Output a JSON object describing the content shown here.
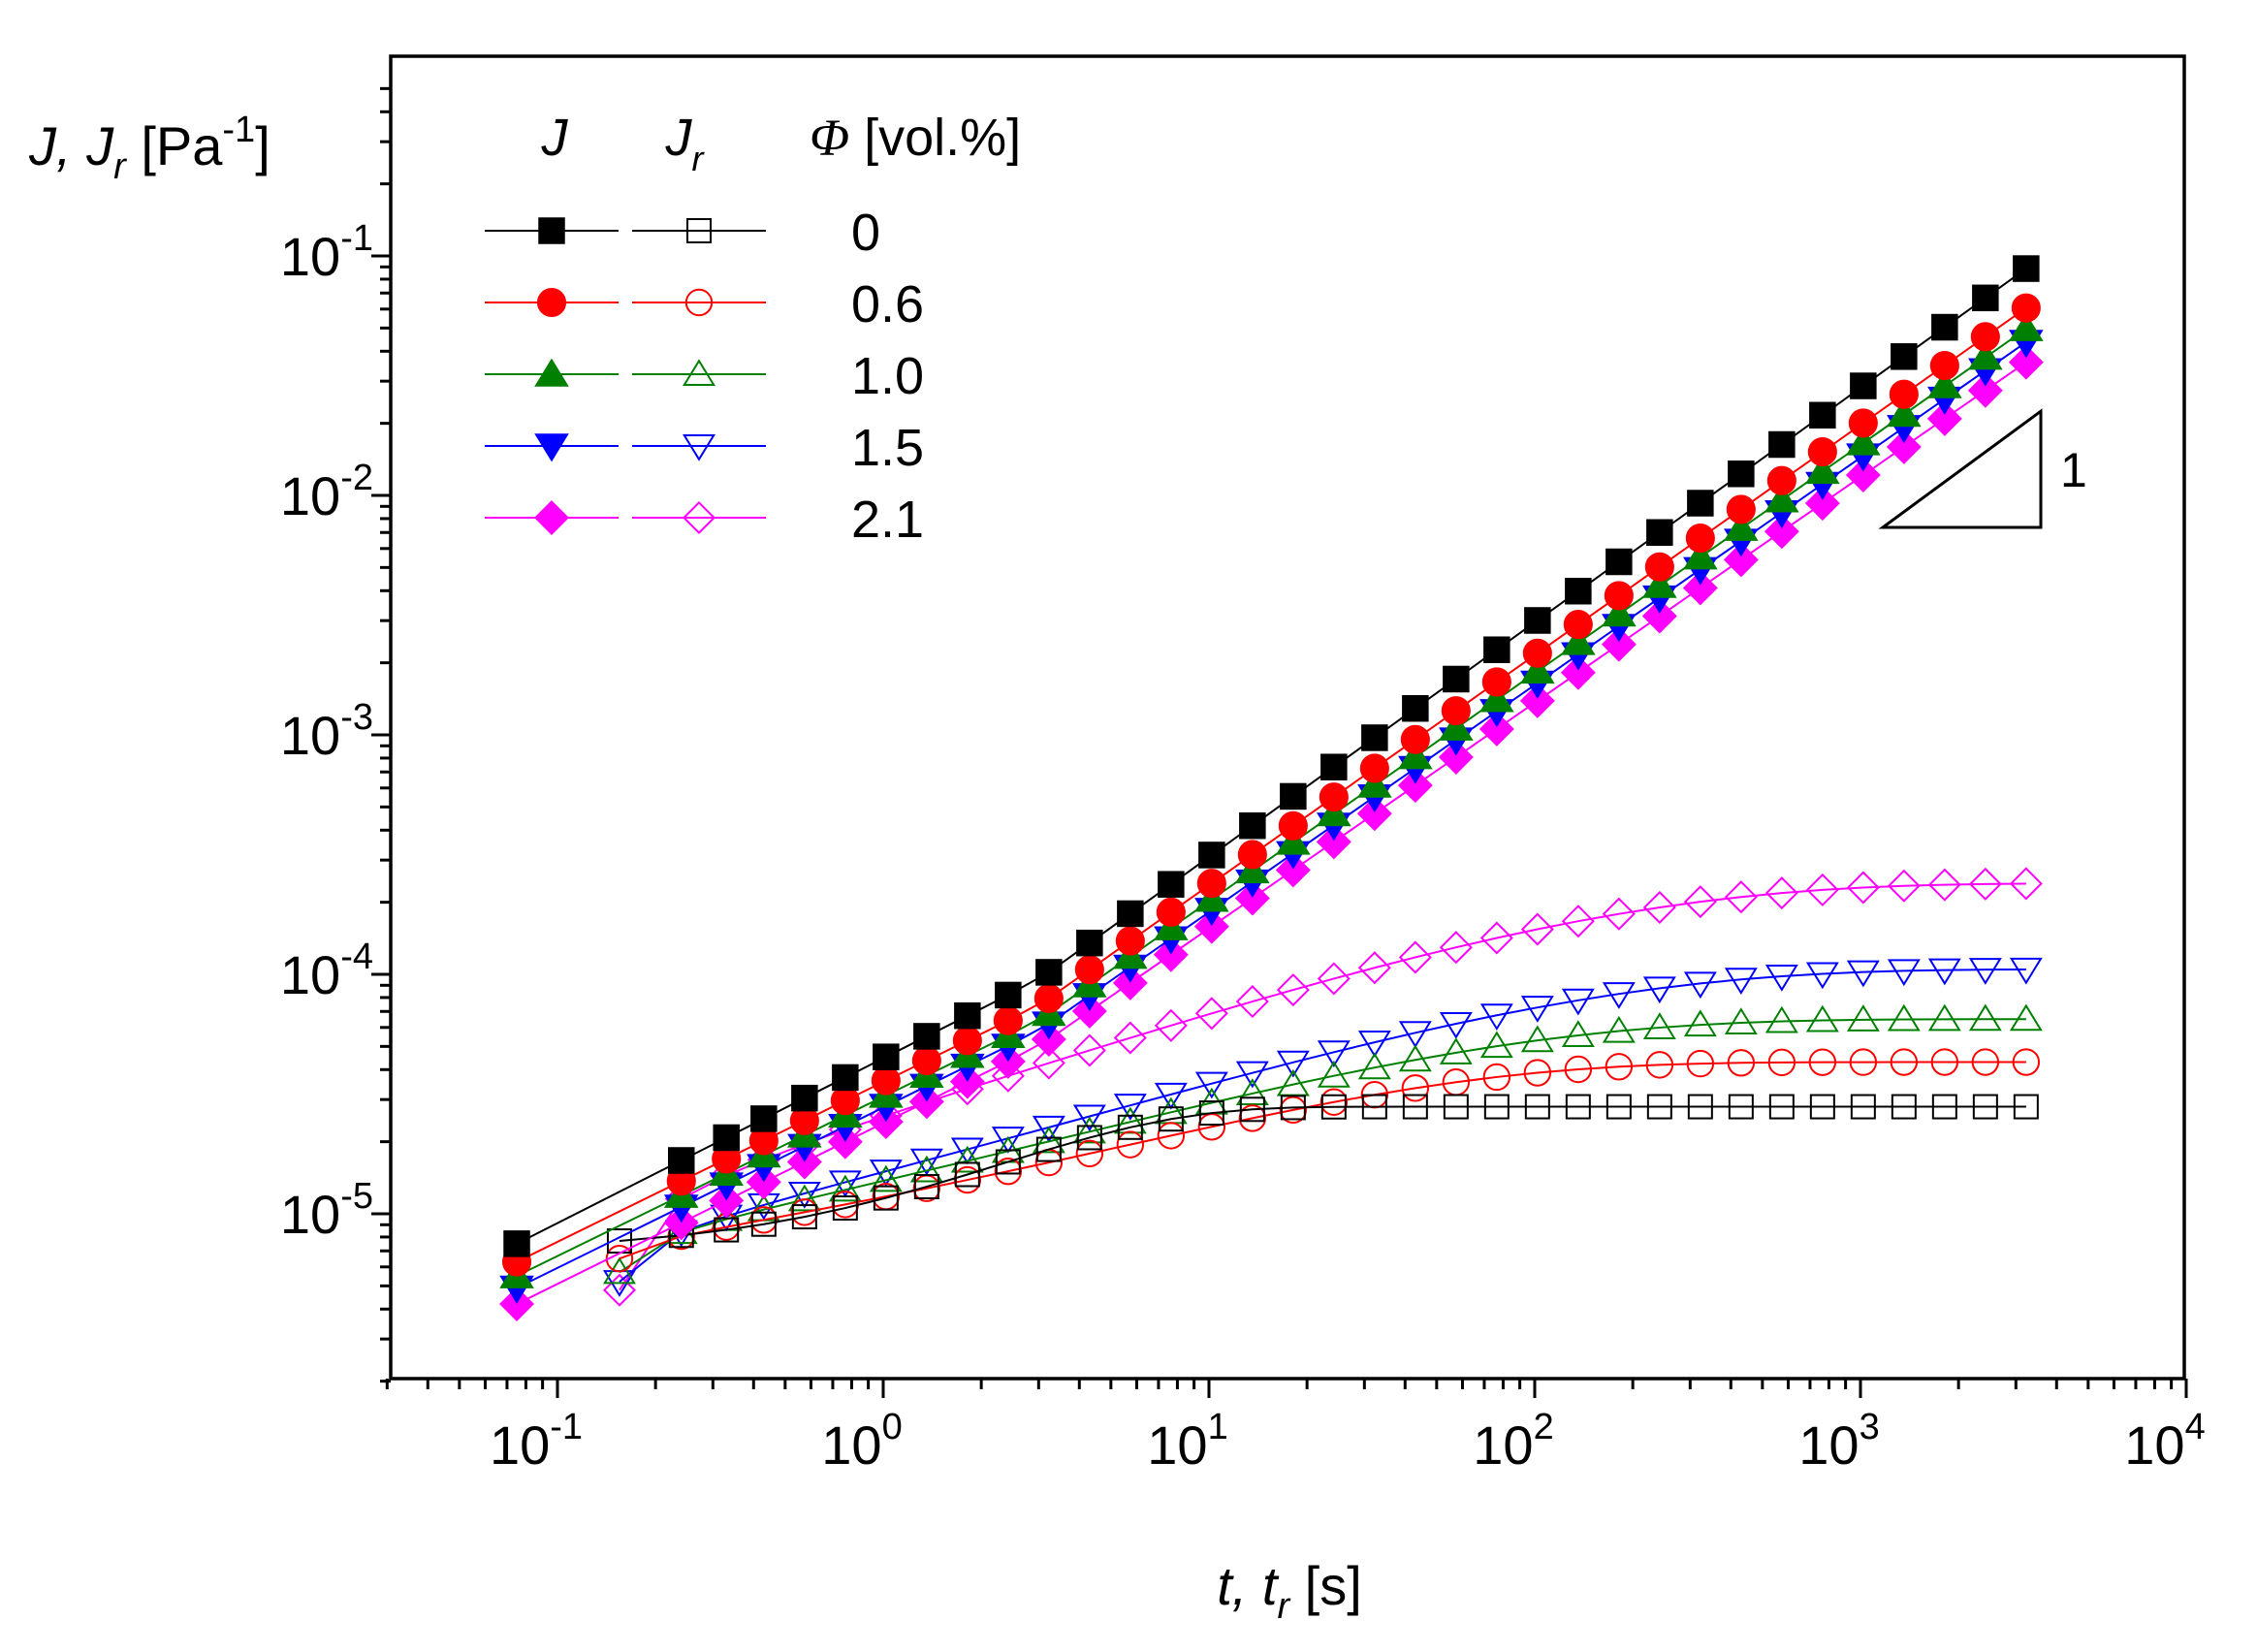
{
  "chart_data": {
    "type": "scatter",
    "xscale": "log",
    "yscale": "log",
    "xlim": [
      0.03,
      10000
    ],
    "ylim": [
      2e-06,
      0.5
    ],
    "xlabel": {
      "main": "t, t",
      "sub": "r",
      "unit": " [s]"
    },
    "ylabel": {
      "main": "J, J",
      "sub": "r",
      "unit": " [Pa",
      "sup": "-1",
      "close": "]"
    },
    "x_ticks": [
      {
        "base": "10",
        "exp": "-1",
        "value": 0.1
      },
      {
        "base": "10",
        "exp": "0",
        "value": 1
      },
      {
        "base": "10",
        "exp": "1",
        "value": 10
      },
      {
        "base": "10",
        "exp": "2",
        "value": 100
      },
      {
        "base": "10",
        "exp": "3",
        "value": 1000
      },
      {
        "base": "10",
        "exp": "4",
        "value": 10000
      }
    ],
    "y_ticks": [
      {
        "base": "10",
        "exp": "-5",
        "value": 1e-05
      },
      {
        "base": "10",
        "exp": "-4",
        "value": 0.0001
      },
      {
        "base": "10",
        "exp": "-3",
        "value": 0.001
      },
      {
        "base": "10",
        "exp": "-2",
        "value": 0.01
      },
      {
        "base": "10",
        "exp": "-1",
        "value": 0.1
      }
    ],
    "legend": {
      "headers": {
        "j": "J",
        "jr_main": "J",
        "jr_sub": "r",
        "phi": "Φ",
        "phi_unit": " [vol.%]"
      },
      "placement": "top-left"
    },
    "slope_annotation": {
      "label": "1",
      "slope": 1
    },
    "series": [
      {
        "phi": "0",
        "color": "#000000",
        "marker": "square",
        "J": {
          "t_start": 0.075,
          "t_end": 3800,
          "J_start": 7.5e-06,
          "J_end": 0.104,
          "knee_t": 3,
          "knee_J": 9.5e-05
        },
        "Jr": {
          "t_start": 0.155,
          "t_end": 3800,
          "J_start": 7.7e-06,
          "plateau": 2.8e-05,
          "tau": 4,
          "beta": 1
        }
      },
      {
        "phi": "0.6",
        "color": "#ff0000",
        "marker": "circle",
        "J": {
          "t_start": 0.075,
          "t_end": 3800,
          "J_start": 6.3e-06,
          "J_end": 0.071,
          "knee_t": 3,
          "knee_J": 7.4e-05
        },
        "Jr": {
          "t_start": 0.155,
          "t_end": 3800,
          "J_start": 6.5e-06,
          "plateau": 4.3e-05,
          "tau": 25,
          "beta": 0.55
        }
      },
      {
        "phi": "1.0",
        "color": "#008000",
        "marker": "triangle-up",
        "J": {
          "t_start": 0.075,
          "t_end": 3800,
          "J_start": 5.5e-06,
          "J_end": 0.058,
          "knee_t": 3,
          "knee_J": 6.4e-05
        },
        "Jr": {
          "t_start": 0.155,
          "t_end": 3800,
          "J_start": 5.7e-06,
          "plateau": 6.5e-05,
          "tau": 40,
          "beta": 0.5
        }
      },
      {
        "phi": "1.5",
        "color": "#0000ff",
        "marker": "triangle-down",
        "J": {
          "t_start": 0.075,
          "t_end": 3800,
          "J_start": 4.9e-06,
          "J_end": 0.051,
          "knee_t": 3,
          "knee_J": 5.8e-05
        },
        "Jr": {
          "t_start": 0.155,
          "t_end": 3800,
          "J_start": 5.2e-06,
          "plateau": 0.000105,
          "tau": 80,
          "beta": 0.5
        }
      },
      {
        "phi": "2.1",
        "color": "#ff00ff",
        "marker": "diamond",
        "J": {
          "t_start": 0.075,
          "t_end": 3800,
          "J_start": 4.2e-06,
          "J_end": 0.042,
          "knee_t": 3,
          "knee_J": 5e-05
        },
        "Jr": {
          "t_start": 0.155,
          "t_end": 3800,
          "J_start": 4.8e-06,
          "plateau": 0.00024,
          "tau": 100,
          "beta": 0.5
        }
      }
    ]
  }
}
